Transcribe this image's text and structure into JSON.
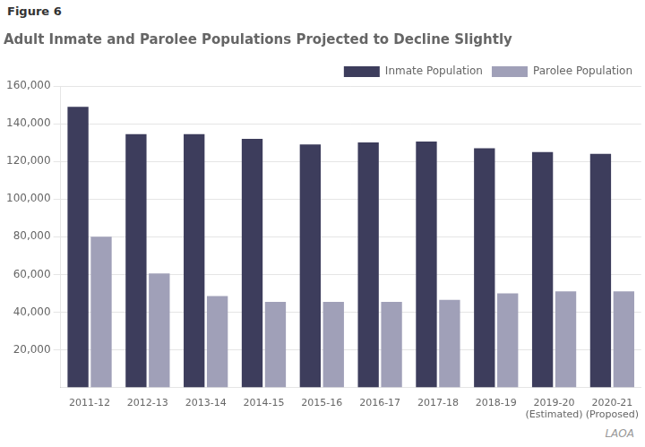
{
  "chart_data": {
    "type": "bar",
    "title": "Adult Inmate and Parolee Populations Projected to Decline Slightly",
    "annotations": [
      "Figure 6",
      "LAOA"
    ],
    "categories": [
      "2011-12",
      "2012-13",
      "2013-14",
      "2014-15",
      "2015-16",
      "2016-17",
      "2017-18",
      "2018-19",
      "2019-20\n(Estimated)",
      "2020-21\n(Proposed)"
    ],
    "series": [
      {
        "name": "Inmate Population",
        "color": "#3d3d5c",
        "values": [
          149000,
          134500,
          134500,
          132000,
          129000,
          130000,
          130500,
          127000,
          125000,
          124000
        ]
      },
      {
        "name": "Parolee Population",
        "color": "#a0a0b8",
        "values": [
          80000,
          60500,
          48500,
          45500,
          45500,
          45500,
          46500,
          50000,
          51000,
          51000
        ]
      }
    ],
    "ylim": [
      0,
      160000
    ],
    "yticks": [
      {
        "value": 20000,
        "label": "20,000"
      },
      {
        "value": 40000,
        "label": "40,000"
      },
      {
        "value": 60000,
        "label": "60,000"
      },
      {
        "value": 80000,
        "label": "80,000"
      },
      {
        "value": 100000,
        "label": "100,000"
      },
      {
        "value": 120000,
        "label": "120,000"
      },
      {
        "value": 140000,
        "label": "140,000"
      },
      {
        "value": 160000,
        "label": "160,000"
      }
    ],
    "grid": true,
    "legend": "upper right"
  }
}
